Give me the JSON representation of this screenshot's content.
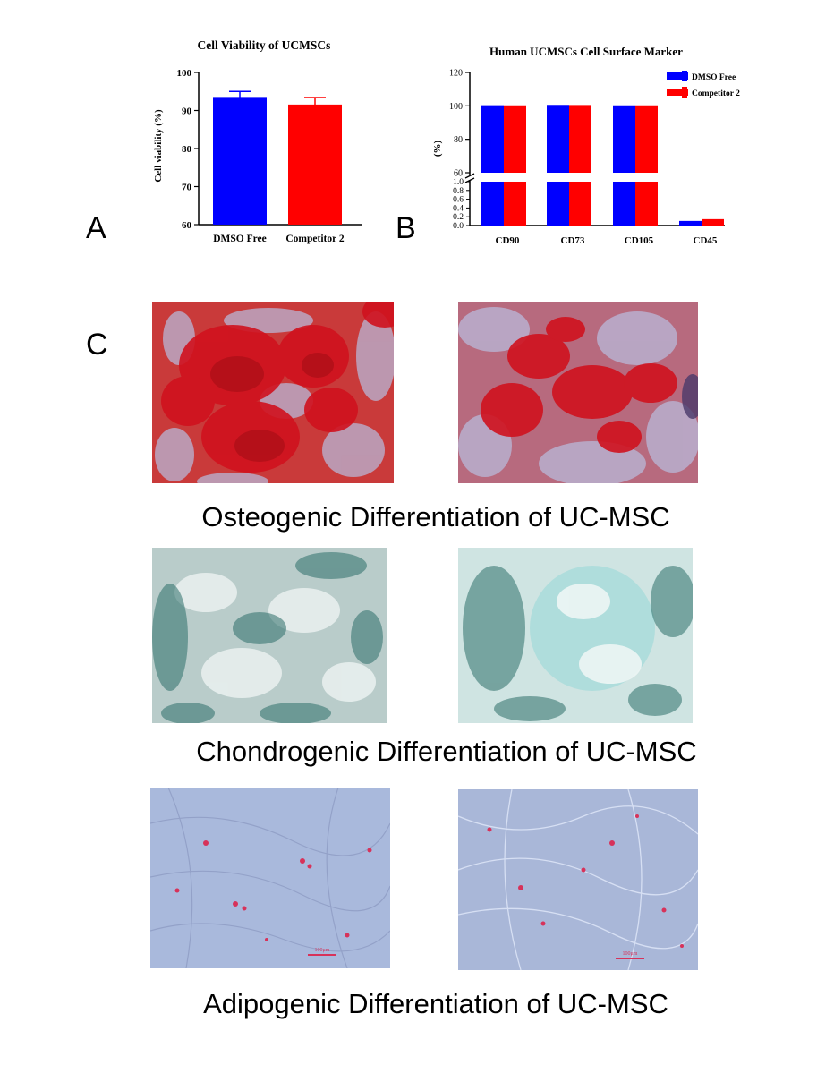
{
  "panels": {
    "a": "A",
    "b": "B",
    "c": "C"
  },
  "chart_data": [
    {
      "type": "bar",
      "title": "Cell Viability of UCMSCs",
      "xlabel": "",
      "ylabel": "Cell viability (%)",
      "categories": [
        "DMSO Free",
        "Competitor 2"
      ],
      "values": [
        93.2,
        91.2
      ],
      "error": [
        1.8,
        2.2
      ],
      "colors": [
        "#0000ff",
        "#ff0000"
      ],
      "ylim": [
        60,
        100
      ],
      "yticks": [
        "60",
        "70",
        "80",
        "90",
        "100"
      ]
    },
    {
      "type": "bar",
      "title": "Human UCMSCs Cell Surface Marker",
      "xlabel": "",
      "ylabel": "(%)",
      "categories": [
        "CD90",
        "CD73",
        "CD105",
        "CD45"
      ],
      "series": [
        {
          "name": "DMSO Free",
          "values": [
            99.6,
            99.8,
            99.5,
            0.08
          ],
          "color": "#0000ff"
        },
        {
          "name": "Competitor 2",
          "values": [
            99.5,
            99.7,
            99.5,
            0.12
          ],
          "color": "#ff0000"
        }
      ],
      "axis_break": {
        "lower": [
          0,
          1.0
        ],
        "upper": [
          60,
          120
        ]
      },
      "yticks_upper": [
        "60",
        "80",
        "100",
        "120"
      ],
      "yticks_lower": [
        "0.0",
        "0.2",
        "0.4",
        "0.6",
        "0.8",
        "1.0"
      ],
      "legend_position": "top-right"
    }
  ],
  "captions": {
    "osteo": "Osteogenic Differentiation of UC-MSC",
    "chondro": "Chondrogenic Differentiation of UC-MSC",
    "adipo": "Adipogenic Differentiation of UC-MSC"
  },
  "scale_bar_label": "100μm",
  "colors": {
    "osteo_stain": "#d0121e",
    "chondro_stain": "#2e6f6a",
    "adipo_bg": "#a9b9dc",
    "adipo_lipid": "#d7325a"
  }
}
